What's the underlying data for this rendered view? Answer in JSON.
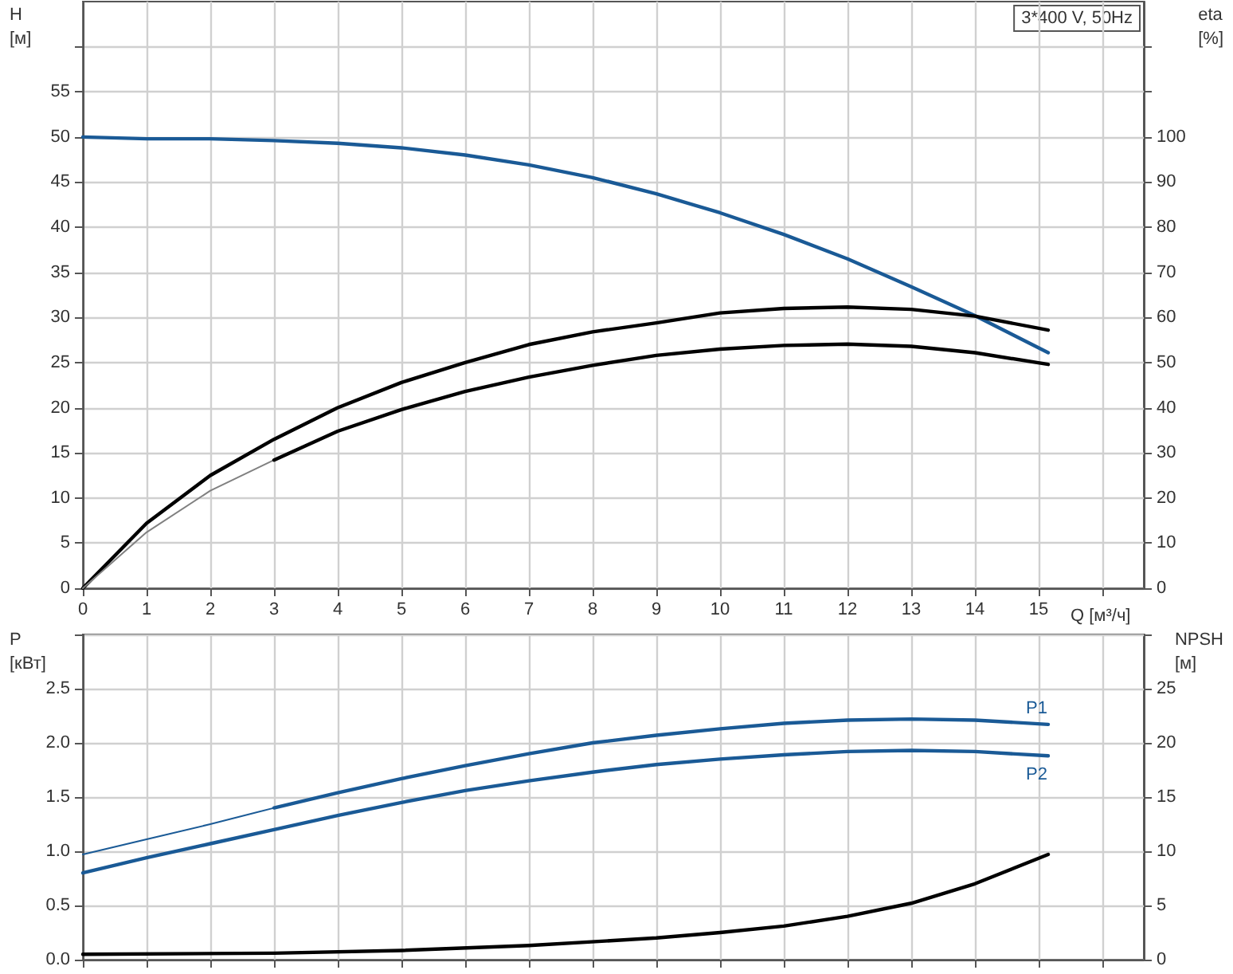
{
  "chart_data": [
    {
      "type": "line",
      "xlabel": "Q [м³/ч]",
      "ylabel": "H\n[м]",
      "y2label": "eta\n[%]",
      "annotations": [
        "3*400 V, 50Hz"
      ],
      "xlim": [
        0,
        16.65
      ],
      "xticks": [
        0,
        1,
        2,
        3,
        4,
        5,
        6,
        7,
        8,
        9,
        10,
        11,
        12,
        13,
        14,
        15,
        {
          "value": 16,
          "label": null
        }
      ],
      "ylim": [
        0,
        65
      ],
      "yticks": [
        0,
        5,
        10,
        15,
        20,
        25,
        30,
        35,
        40,
        45,
        50,
        55,
        {
          "value": 60,
          "label": null
        }
      ],
      "y2lim": [
        0,
        130
      ],
      "y2ticks": [
        0,
        10,
        20,
        30,
        40,
        50,
        60,
        70,
        80,
        90,
        100,
        {
          "value": 110,
          "label": null
        },
        {
          "value": 120,
          "label": null
        }
      ],
      "grid": true,
      "legend": false,
      "marker": "none",
      "line_style": "solid",
      "series": [
        {
          "color": "#1a5a96",
          "axis": "y",
          "x": [
            0,
            1,
            2,
            3,
            4,
            5,
            6,
            7,
            8,
            9,
            10,
            11,
            12,
            13,
            14,
            15.15
          ],
          "values": [
            50,
            49.8,
            49.8,
            49.6,
            49.3,
            48.8,
            48,
            46.9,
            45.5,
            43.7,
            41.6,
            39.2,
            36.5,
            33.4,
            30.2,
            26.1
          ]
        },
        {
          "color": "#000000",
          "axis": "y2",
          "x": [
            0,
            1,
            2,
            3,
            4,
            5,
            6,
            7,
            8,
            9,
            10,
            11,
            12,
            13,
            14,
            15.15
          ],
          "values": [
            0,
            14.4,
            25,
            33,
            40,
            45.6,
            50,
            54,
            56.8,
            58.8,
            61,
            62,
            62.3,
            61.8,
            60.3,
            57.2
          ]
        },
        {
          "color": "#808080",
          "axis": "y2",
          "x": [
            0,
            1,
            2,
            3
          ],
          "values": [
            0,
            12.4,
            21.6,
            28.4
          ]
        },
        {
          "color": "#000000",
          "axis": "y2",
          "x": [
            3,
            4,
            5,
            6,
            7,
            8,
            9,
            10,
            11,
            12,
            13,
            14,
            15.15
          ],
          "values": [
            28.4,
            34.8,
            39.6,
            43.6,
            46.8,
            49.4,
            51.6,
            53,
            53.8,
            54.1,
            53.6,
            52.2,
            49.6
          ]
        }
      ]
    },
    {
      "type": "line",
      "ylabel": "P\n[кВт]",
      "y2label": "NPSH\n[м]",
      "xlim": [
        0,
        16.65
      ],
      "xticks": [
        0,
        1,
        2,
        3,
        4,
        5,
        6,
        7,
        8,
        9,
        10,
        11,
        12,
        13,
        14,
        15,
        16
      ],
      "ylim": [
        0,
        3
      ],
      "yticks": [
        {
          "value": 0,
          "label": "0.0"
        },
        0.5,
        {
          "value": 1,
          "label": "1.0"
        },
        1.5,
        {
          "value": 2,
          "label": "2.0"
        },
        2.5,
        {
          "value": 3,
          "label": null
        }
      ],
      "y2lim": [
        0,
        30
      ],
      "y2ticks": [
        0,
        5,
        10,
        15,
        20,
        25,
        {
          "value": 30,
          "label": null
        }
      ],
      "tick_labels": "y",
      "grid": true,
      "legend": false,
      "marker": "none",
      "line_style": "solid",
      "series": [
        {
          "color": "#1a5a96",
          "axis": "y",
          "x": [
            0,
            1,
            2,
            3
          ],
          "values": [
            0.97,
            1.11,
            1.25,
            1.4
          ]
        },
        {
          "name": "P1",
          "color": "#1a5a96",
          "axis": "y",
          "x": [
            3,
            4,
            5,
            6,
            7,
            8,
            9,
            10,
            11,
            12,
            13,
            14,
            15.15
          ],
          "values": [
            1.4,
            1.54,
            1.67,
            1.79,
            1.9,
            2,
            2.07,
            2.13,
            2.18,
            2.21,
            2.22,
            2.21,
            2.17
          ]
        },
        {
          "name": "P2",
          "color": "#1a5a96",
          "axis": "y",
          "x": [
            0,
            1,
            2,
            3,
            4,
            5,
            6,
            7,
            8,
            9,
            10,
            11,
            12,
            13,
            14,
            15.15
          ],
          "values": [
            0.8,
            0.94,
            1.07,
            1.2,
            1.33,
            1.45,
            1.56,
            1.65,
            1.73,
            1.8,
            1.85,
            1.89,
            1.92,
            1.93,
            1.92,
            1.88
          ]
        },
        {
          "color": "#000000",
          "axis": "y2",
          "x": [
            0,
            3,
            5,
            7,
            9,
            10,
            11,
            12,
            13,
            14,
            15.15
          ],
          "values": [
            0.5,
            0.6,
            0.85,
            1.3,
            2,
            2.5,
            3.1,
            4,
            5.2,
            7,
            9.7
          ]
        }
      ]
    }
  ]
}
